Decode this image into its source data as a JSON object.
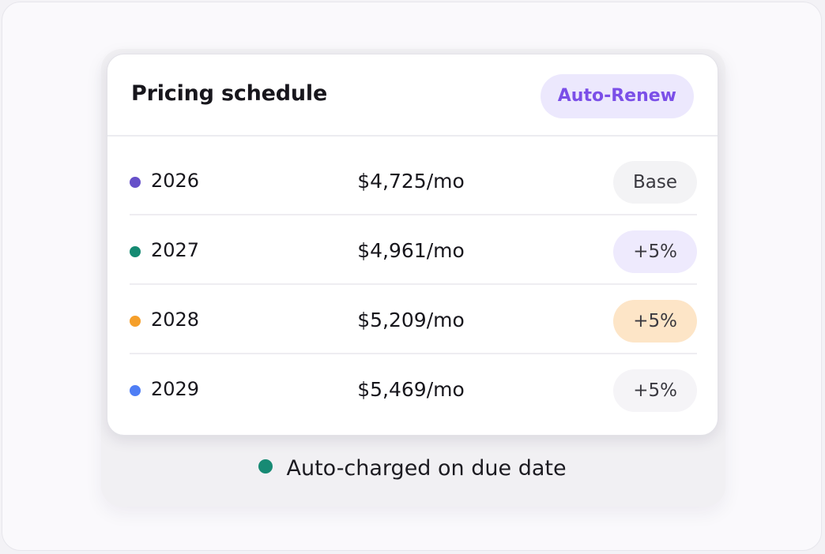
{
  "card": {
    "title": "Pricing schedule",
    "badge": "Auto-Renew"
  },
  "colors": {
    "accent_purple": "#7b4fe8",
    "badge_bg": "#ece8fd",
    "footer_dot": "#178a74"
  },
  "schedule": [
    {
      "year": "2026",
      "price": "$4,725/mo",
      "tag": "Base",
      "dot_color": "#6650c9"
    },
    {
      "year": "2027",
      "price": "$4,961/mo",
      "tag": "+5%",
      "dot_color": "#158a72"
    },
    {
      "year": "2028",
      "price": "$5,209/mo",
      "tag": "+5%",
      "dot_color": "#f59f2a"
    },
    {
      "year": "2029",
      "price": "$5,469/mo",
      "tag": "+5%",
      "dot_color": "#4f7ef5"
    }
  ],
  "footer": {
    "note": "Auto-charged on due date"
  }
}
